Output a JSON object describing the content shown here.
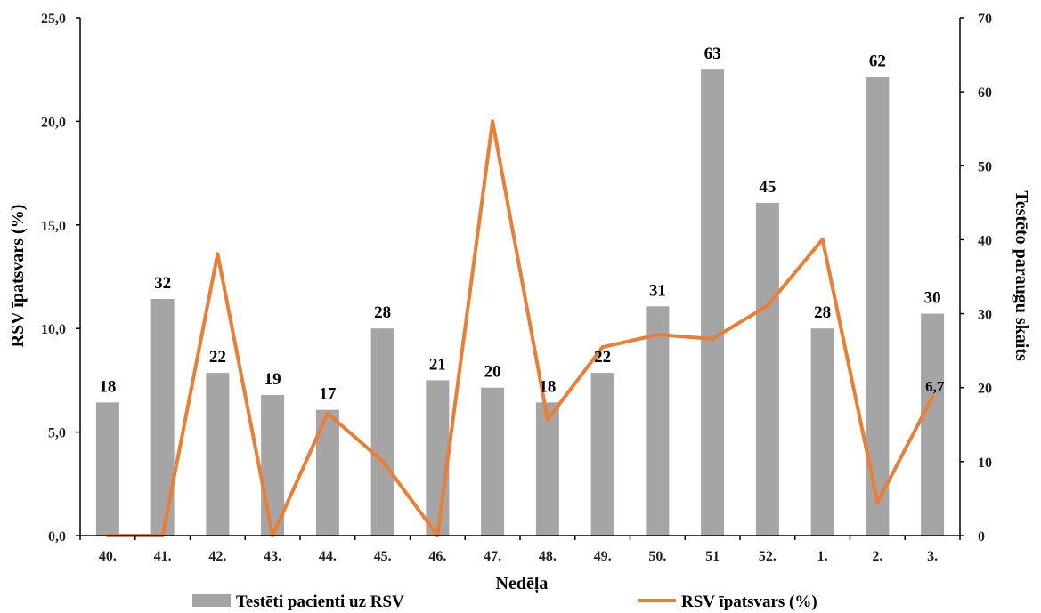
{
  "chart_data": {
    "type": "bar",
    "xlabel": "Nedēļa",
    "ylabel_left": "RSV īpatsvars (%)",
    "ylabel_right": "Testēto paraugu skaits",
    "categories": [
      "40.",
      "41.",
      "42.",
      "43.",
      "44.",
      "45.",
      "46.",
      "47.",
      "48.",
      "49.",
      "50.",
      "51",
      "52.",
      "1.",
      "2.",
      "3."
    ],
    "y_left": {
      "range": [
        0,
        25
      ],
      "ticks": [
        "0,0",
        "5,0",
        "10,0",
        "15,0",
        "20,0",
        "25,0"
      ]
    },
    "y_right": {
      "range": [
        0,
        70
      ],
      "ticks": [
        "0",
        "10",
        "20",
        "30",
        "40",
        "50",
        "60",
        "70"
      ]
    },
    "series": [
      {
        "name": "Testēti pacienti uz RSV",
        "kind": "bar",
        "axis": "right",
        "color": "#a5a5a5",
        "values": [
          18,
          32,
          22,
          19,
          17,
          28,
          21,
          20,
          18,
          22,
          31,
          63,
          45,
          28,
          62,
          30
        ],
        "labels": [
          "18",
          "32",
          "22",
          "19",
          "17",
          "28",
          "21",
          "20",
          "18",
          "22",
          "31",
          "63",
          "45",
          "28",
          "62",
          "30"
        ]
      },
      {
        "name": "RSV īpatsvars (%)",
        "kind": "line",
        "axis": "left",
        "color": "#ed7d31",
        "values": [
          0.0,
          0.0,
          13.6,
          0.0,
          5.9,
          3.6,
          0.0,
          20.0,
          5.6,
          9.1,
          9.7,
          9.5,
          11.1,
          14.3,
          1.6,
          6.7
        ],
        "point_labels": [
          {
            "index": 15,
            "text": "6,7"
          }
        ]
      }
    ],
    "legend": "bottom",
    "grid": false
  }
}
